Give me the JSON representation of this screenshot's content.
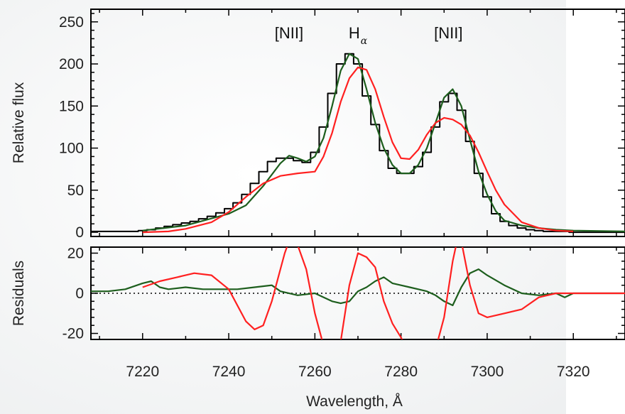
{
  "chart_data": [
    {
      "panel": "top",
      "type": "line",
      "xlabel": "",
      "ylabel": "Relative flux",
      "xlim": [
        7208,
        7332
      ],
      "ylim": [
        -5,
        265
      ],
      "yticks": [
        0,
        50,
        100,
        150,
        200,
        250
      ],
      "ytick_labels": [
        "0",
        "50",
        "100",
        "150",
        "200",
        "250"
      ],
      "xticks": [
        7220,
        7240,
        7260,
        7280,
        7300,
        7320
      ],
      "annotations": [
        {
          "text": "[NII]",
          "x": 7254,
          "y": 237
        },
        {
          "text": "H",
          "subscript": "α",
          "x": 7270,
          "y": 237
        },
        {
          "text": "[NII]",
          "x": 7291,
          "y": 237
        }
      ],
      "series": [
        {
          "style": "step",
          "color": "#000000",
          "x": [
            7208,
            7210,
            7212,
            7214,
            7216,
            7218,
            7220,
            7222,
            7224,
            7226,
            7228,
            7230,
            7232,
            7234,
            7236,
            7238,
            7240,
            7242,
            7244,
            7246,
            7248,
            7250,
            7252,
            7254,
            7256,
            7258,
            7260,
            7262,
            7264,
            7266,
            7268,
            7270,
            7272,
            7274,
            7276,
            7278,
            7280,
            7282,
            7284,
            7286,
            7288,
            7290,
            7292,
            7294,
            7296,
            7298,
            7300,
            7302,
            7304,
            7306,
            7308,
            7310,
            7312,
            7314,
            7316,
            7318,
            7320,
            7322,
            7324,
            7326,
            7328,
            7330,
            7332
          ],
          "y": [
            1,
            1,
            1,
            1,
            1,
            1,
            2,
            3,
            5,
            7,
            9,
            11,
            13,
            16,
            19,
            23,
            28,
            35,
            45,
            58,
            72,
            84,
            88,
            88,
            85,
            83,
            95,
            125,
            165,
            200,
            212,
            200,
            162,
            128,
            97,
            76,
            70,
            70,
            78,
            95,
            125,
            155,
            165,
            145,
            108,
            70,
            42,
            22,
            13,
            8,
            5,
            3,
            2,
            1,
            1,
            1,
            0,
            0,
            0,
            0,
            0,
            0,
            0
          ]
        },
        {
          "style": "line",
          "color": "#1d5e1d",
          "x": [
            7220,
            7230,
            7240,
            7244,
            7248,
            7252,
            7254,
            7256,
            7258,
            7260,
            7262,
            7264,
            7266,
            7268,
            7270,
            7272,
            7274,
            7276,
            7278,
            7280,
            7282,
            7284,
            7286,
            7288,
            7290,
            7292,
            7294,
            7296,
            7298,
            7300,
            7302,
            7304,
            7308,
            7312,
            7316,
            7320,
            7332
          ],
          "y": [
            2,
            8,
            22,
            32,
            55,
            82,
            91,
            88,
            84,
            90,
            112,
            150,
            192,
            212,
            206,
            170,
            130,
            100,
            80,
            70,
            70,
            80,
            100,
            130,
            160,
            170,
            150,
            110,
            72,
            45,
            25,
            14,
            8,
            5,
            3,
            2,
            1
          ]
        },
        {
          "style": "line",
          "color": "#ff2020",
          "x": [
            7220,
            7226,
            7230,
            7236,
            7240,
            7244,
            7248,
            7252,
            7256,
            7260,
            7262,
            7264,
            7266,
            7268,
            7270,
            7272,
            7274,
            7276,
            7278,
            7280,
            7282,
            7284,
            7286,
            7288,
            7290,
            7292,
            7294,
            7296,
            7298,
            7300,
            7302,
            7304,
            7308,
            7312,
            7316,
            7320
          ],
          "y": [
            0,
            1,
            4,
            12,
            24,
            42,
            58,
            67,
            70,
            72,
            90,
            118,
            155,
            183,
            196,
            193,
            170,
            137,
            107,
            88,
            87,
            98,
            116,
            130,
            136,
            134,
            128,
            115,
            95,
            72,
            50,
            33,
            12,
            5,
            2,
            1
          ]
        }
      ]
    },
    {
      "panel": "bottom",
      "type": "line",
      "xlabel": "Wavelength, Å",
      "ylabel": "Residuals",
      "xlim": [
        7208,
        7332
      ],
      "ylim": [
        -23,
        23
      ],
      "yticks": [
        -20,
        0,
        20
      ],
      "ytick_labels": [
        "-20",
        "0",
        "20"
      ],
      "xticks": [
        7220,
        7240,
        7260,
        7280,
        7300,
        7320
      ],
      "xtick_labels": [
        "7220",
        "7240",
        "7260",
        "7280",
        "7300",
        "7320"
      ],
      "zero_line": "dotted",
      "series": [
        {
          "style": "line",
          "color": "#1d5e1d",
          "x": [
            7208,
            7212,
            7216,
            7220,
            7222,
            7224,
            7226,
            7230,
            7234,
            7238,
            7242,
            7246,
            7250,
            7252,
            7256,
            7260,
            7264,
            7266,
            7268,
            7270,
            7272,
            7274,
            7276,
            7278,
            7280,
            7282,
            7284,
            7286,
            7288,
            7290,
            7292,
            7294,
            7296,
            7298,
            7300,
            7304,
            7308,
            7312,
            7316,
            7318,
            7320,
            7324,
            7332
          ],
          "y": [
            1,
            1,
            2,
            5,
            6,
            3,
            2,
            3,
            2,
            2,
            2,
            3,
            4,
            1,
            -1,
            0,
            -4,
            -5,
            -4,
            1,
            3,
            6,
            8,
            5,
            4,
            3,
            2,
            1,
            -1,
            -4,
            -6,
            3,
            10,
            12,
            9,
            4,
            0,
            -1,
            0,
            -2,
            0,
            0,
            0
          ]
        },
        {
          "style": "line",
          "color": "#ff2020",
          "x": [
            7220,
            7224,
            7228,
            7232,
            7236,
            7240,
            7244,
            7246,
            7248,
            7250,
            7252,
            7253,
            7254,
            7256,
            7258,
            7260,
            7262,
            7264,
            7266,
            7268,
            7270,
            7272,
            7274,
            7276,
            7278,
            7280,
            7282,
            7284,
            7286,
            7288,
            7290,
            7292,
            7293,
            7294,
            7296,
            7298,
            7300,
            7304,
            7308,
            7312,
            7316,
            7320,
            7324,
            7332
          ],
          "y": [
            3,
            6,
            8,
            10,
            9,
            2,
            -14,
            -18,
            -16,
            -4,
            12,
            20,
            26,
            24,
            12,
            -10,
            -26,
            -30,
            -24,
            4,
            20,
            18,
            13,
            -4,
            -15,
            -22,
            -30,
            -32,
            -30,
            -28,
            -12,
            16,
            26,
            26,
            4,
            -10,
            -12,
            -10,
            -8,
            -2,
            0,
            0,
            0,
            0
          ]
        }
      ]
    }
  ]
}
